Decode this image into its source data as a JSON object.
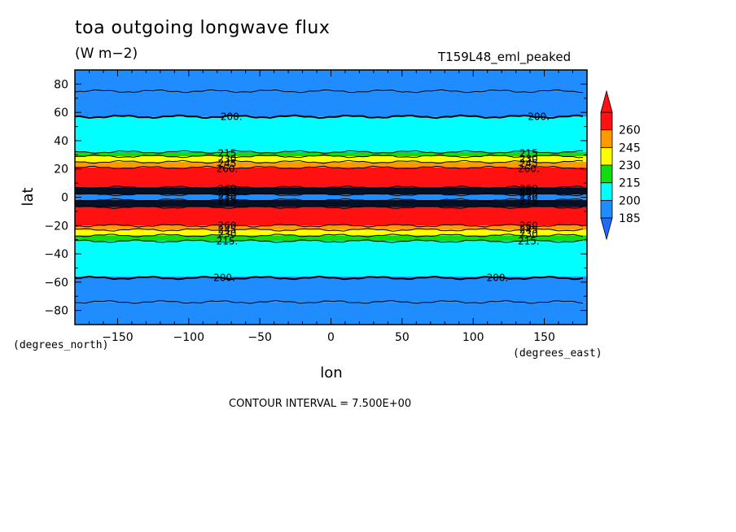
{
  "title": "toa outgoing longwave flux",
  "units": "(W m−2)",
  "run_name": "T159L48_eml_peaked",
  "contour_interval": "CONTOUR INTERVAL = 7.500E+00",
  "chart_data": {
    "type": "heatmap",
    "title": "toa outgoing longwave flux",
    "units": "W m-2",
    "xlabel": "lon",
    "ylabel": "lat",
    "x_units": "(degrees_east)",
    "y_units": "(degrees_north)",
    "xlim": [
      -180,
      180
    ],
    "ylim": [
      -90,
      90
    ],
    "x_ticks": [
      -150,
      -100,
      -50,
      0,
      50,
      100,
      150
    ],
    "x_tick_labels": [
      "−150",
      "−100",
      "−50",
      "0",
      "50",
      "100",
      "150"
    ],
    "y_ticks": [
      -80,
      -60,
      -40,
      -20,
      0,
      20,
      40,
      60,
      80
    ],
    "y_tick_labels": [
      "−80",
      "−60",
      "−40",
      "−20",
      "0",
      "20",
      "40",
      "60",
      "80"
    ],
    "colorbar": {
      "levels": [
        185,
        200,
        215,
        230,
        245,
        260
      ],
      "labels": [
        "185",
        "200",
        "215",
        "230",
        "245",
        "260"
      ],
      "colors": [
        "#1f8cff",
        "#00ffff",
        "#11dd11",
        "#ffff00",
        "#ff9900",
        "#ff1111"
      ],
      "below_color": "#1f6bff",
      "above_color": "#ff1111"
    },
    "bands": [
      {
        "lat_min": 75,
        "lat_max": 90,
        "value": 190
      },
      {
        "lat_min": 57,
        "lat_max": 75,
        "value": 190
      },
      {
        "lat_min": 32,
        "lat_max": 57,
        "value": 207
      },
      {
        "lat_min": 29,
        "lat_max": 32,
        "value": 222
      },
      {
        "lat_min": 25,
        "lat_max": 29,
        "value": 237
      },
      {
        "lat_min": 21,
        "lat_max": 25,
        "value": 252
      },
      {
        "lat_min": 7,
        "lat_max": 21,
        "value": 265
      },
      {
        "lat_min": 2,
        "lat_max": 7,
        "value": 180
      },
      {
        "lat_min": -2,
        "lat_max": 2,
        "value": 190
      },
      {
        "lat_min": -7,
        "lat_max": -2,
        "value": 180
      },
      {
        "lat_min": -20,
        "lat_max": -7,
        "value": 265
      },
      {
        "lat_min": -23,
        "lat_max": -20,
        "value": 252
      },
      {
        "lat_min": -27,
        "lat_max": -23,
        "value": 237
      },
      {
        "lat_min": -31,
        "lat_max": -27,
        "value": 222
      },
      {
        "lat_min": -56,
        "lat_max": -31,
        "value": 207
      },
      {
        "lat_min": -74,
        "lat_max": -56,
        "value": 190
      },
      {
        "lat_min": -90,
        "lat_max": -74,
        "value": 190
      }
    ],
    "contour_labels": [
      {
        "text": "200.",
        "lon": -70,
        "lat": 57
      },
      {
        "text": "200.",
        "lon": 146,
        "lat": 57
      },
      {
        "text": "215",
        "lon": -73,
        "lat": 31
      },
      {
        "text": "215",
        "lon": 139,
        "lat": 31
      },
      {
        "text": "230",
        "lon": -73,
        "lat": 27
      },
      {
        "text": "230",
        "lon": 139,
        "lat": 27
      },
      {
        "text": "245",
        "lon": -73,
        "lat": 24
      },
      {
        "text": "245",
        "lon": 139,
        "lat": 24
      },
      {
        "text": "260.",
        "lon": -73,
        "lat": 20
      },
      {
        "text": "260.",
        "lon": 139,
        "lat": 20
      },
      {
        "text": "260",
        "lon": -73,
        "lat": 6
      },
      {
        "text": "260",
        "lon": 139,
        "lat": 6
      },
      {
        "text": "245",
        "lon": -73,
        "lat": 3
      },
      {
        "text": "245",
        "lon": 139,
        "lat": 3
      },
      {
        "text": "230",
        "lon": -73,
        "lat": 0
      },
      {
        "text": "230",
        "lon": 139,
        "lat": 0
      },
      {
        "text": "215",
        "lon": -73,
        "lat": -3
      },
      {
        "text": "215",
        "lon": 139,
        "lat": -3
      },
      {
        "text": "260",
        "lon": -73,
        "lat": -20
      },
      {
        "text": "260",
        "lon": 139,
        "lat": -20
      },
      {
        "text": "245",
        "lon": -73,
        "lat": -23
      },
      {
        "text": "245",
        "lon": 139,
        "lat": -23
      },
      {
        "text": "230",
        "lon": -73,
        "lat": -26
      },
      {
        "text": "230",
        "lon": 139,
        "lat": -26
      },
      {
        "text": "215.",
        "lon": -73,
        "lat": -31
      },
      {
        "text": "215.",
        "lon": 139,
        "lat": -31
      },
      {
        "text": "200.",
        "lon": -75,
        "lat": -57
      },
      {
        "text": "200.",
        "lon": 117,
        "lat": -57
      }
    ],
    "thick_contours_lat": [
      57,
      -57
    ],
    "thin_contours_lat": [
      75,
      32,
      29,
      25,
      21,
      7,
      2,
      -2,
      -7,
      -20,
      -23,
      -27,
      -31,
      -74
    ]
  }
}
